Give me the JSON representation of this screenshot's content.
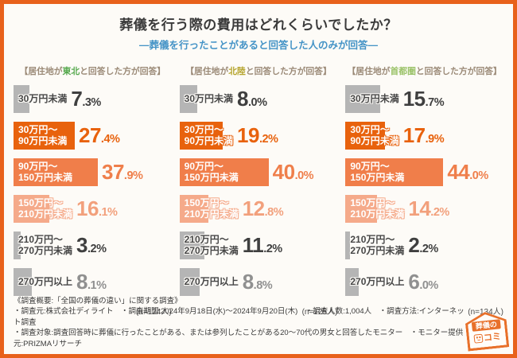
{
  "title": "葬儀を行う際の費用はどれくらいでしたか？",
  "subtitle": "―葬儀を行ったことがあると回答した人のみが回答―",
  "colors": {
    "frame_border": "#e8611b",
    "subtitle_blue": "#4493c6",
    "bar_orange_dark": "#e8620d",
    "bar_orange_mid": "#f07e4a",
    "bar_orange_light": "#f5aa8a",
    "bar_gray": "#b5b5b5",
    "heading_brown": "#9b8a77"
  },
  "chart_data": {
    "type": "bar",
    "title": "葬儀を行う際の費用はどれくらいでしたか？",
    "subtitle": "―葬儀を行ったことがあると回答した人のみが回答―",
    "unit": "%",
    "categories": [
      "30万円未満",
      "30万円～90万円未満",
      "90万円～150万円未満",
      "150万円～210万円未満",
      "210万円～270万円未満",
      "270万円以上"
    ],
    "series": [
      {
        "name": "東北",
        "n": 124,
        "values": [
          7.3,
          27.4,
          37.9,
          16.1,
          3.2,
          8.1
        ]
      },
      {
        "name": "北陸",
        "n": 125,
        "values": [
          8.0,
          19.2,
          40.0,
          12.8,
          11.2,
          8.8
        ]
      },
      {
        "name": "首都圏",
        "n": 134,
        "values": [
          15.7,
          17.9,
          44.0,
          14.2,
          2.2,
          6.0
        ]
      }
    ],
    "legend_position": "none",
    "grid": false,
    "orientation": "horizontal"
  },
  "columns": [
    {
      "heading_prefix": "【居住地が",
      "region": "東北",
      "region_color": "#56a94e",
      "heading_suffix": "と回答した方が回答】",
      "n_label": "(n=124人)",
      "rows": [
        {
          "label_lines": [
            "30万円未満"
          ],
          "value": "7.3",
          "tone": "gray"
        },
        {
          "label_lines": [
            "30万円～",
            "90万円未満"
          ],
          "value": "27.4",
          "tone": "o1"
        },
        {
          "label_lines": [
            "90万円～",
            "150万円未満"
          ],
          "value": "37.9",
          "tone": "o2"
        },
        {
          "label_lines": [
            "150万円～",
            "210万円未満"
          ],
          "value": "16.1",
          "tone": "o3"
        },
        {
          "label_lines": [
            "210万円～",
            "270万円未満"
          ],
          "value": "3.2",
          "tone": "gray"
        },
        {
          "label_lines": [
            "270万円以上"
          ],
          "value": "8.1",
          "tone": "gray-light"
        }
      ]
    },
    {
      "heading_prefix": "【居住地が",
      "region": "北陸",
      "region_color": "#b5a42c",
      "heading_suffix": "と回答した方が回答】",
      "n_label": "(n=125人)",
      "rows": [
        {
          "label_lines": [
            "30万円未満"
          ],
          "value": "8.0",
          "tone": "gray"
        },
        {
          "label_lines": [
            "30万円～",
            "90万円未満"
          ],
          "value": "19.2",
          "tone": "o1"
        },
        {
          "label_lines": [
            "90万円～",
            "150万円未満"
          ],
          "value": "40.0",
          "tone": "o2"
        },
        {
          "label_lines": [
            "150万円～",
            "210万円未満"
          ],
          "value": "12.8",
          "tone": "o3"
        },
        {
          "label_lines": [
            "210万円～",
            "270万円未満"
          ],
          "value": "11.2",
          "tone": "gray"
        },
        {
          "label_lines": [
            "270万円以上"
          ],
          "value": "8.8",
          "tone": "gray-light"
        }
      ]
    },
    {
      "heading_prefix": "【居住地が",
      "region": "首都圏",
      "region_color": "#9cc36a",
      "heading_suffix": "と回答した方が回答】",
      "n_label": "(n=134人)",
      "rows": [
        {
          "label_lines": [
            "30万円未満"
          ],
          "value": "15.7",
          "tone": "gray"
        },
        {
          "label_lines": [
            "30万円～",
            "90万円未満"
          ],
          "value": "17.9",
          "tone": "o1"
        },
        {
          "label_lines": [
            "90万円～",
            "150万円未満"
          ],
          "value": "44.0",
          "tone": "o2"
        },
        {
          "label_lines": [
            "150万円～",
            "210万円未満"
          ],
          "value": "14.2",
          "tone": "o3"
        },
        {
          "label_lines": [
            "210万円～",
            "270万円未満"
          ],
          "value": "2.2",
          "tone": "gray"
        },
        {
          "label_lines": [
            "270万円以上"
          ],
          "value": "6.0",
          "tone": "gray-light"
        }
      ]
    }
  ],
  "footer": {
    "line1": "《調査概要:「全国の葬儀の違い」に関する調査》",
    "line2": "・調査元:株式会社ディライト　・調査期間:2024年9月18日(水)～2024年9月20日(木)　・調査人数:1,004人　・調査方法:インターネット調査",
    "line3": "・調査対象:調査回答時に葬儀に行ったことがある、または参列したことがある20～70代の男女と回答したモニター　・モニター提供元:PRIZMAリサーチ"
  },
  "logo": {
    "label_top": "葬儀の",
    "label_bottom": "コミ"
  }
}
